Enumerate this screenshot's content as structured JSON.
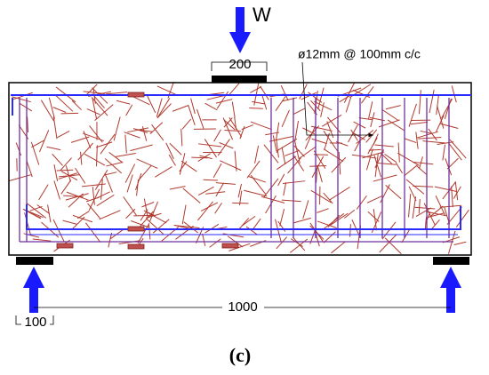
{
  "load_label": "W",
  "plate_width": "200",
  "stirrup_note": "ø12mm @ 100mm c/c",
  "span": "1000",
  "support_offset": "100",
  "caption": "(c)"
}
